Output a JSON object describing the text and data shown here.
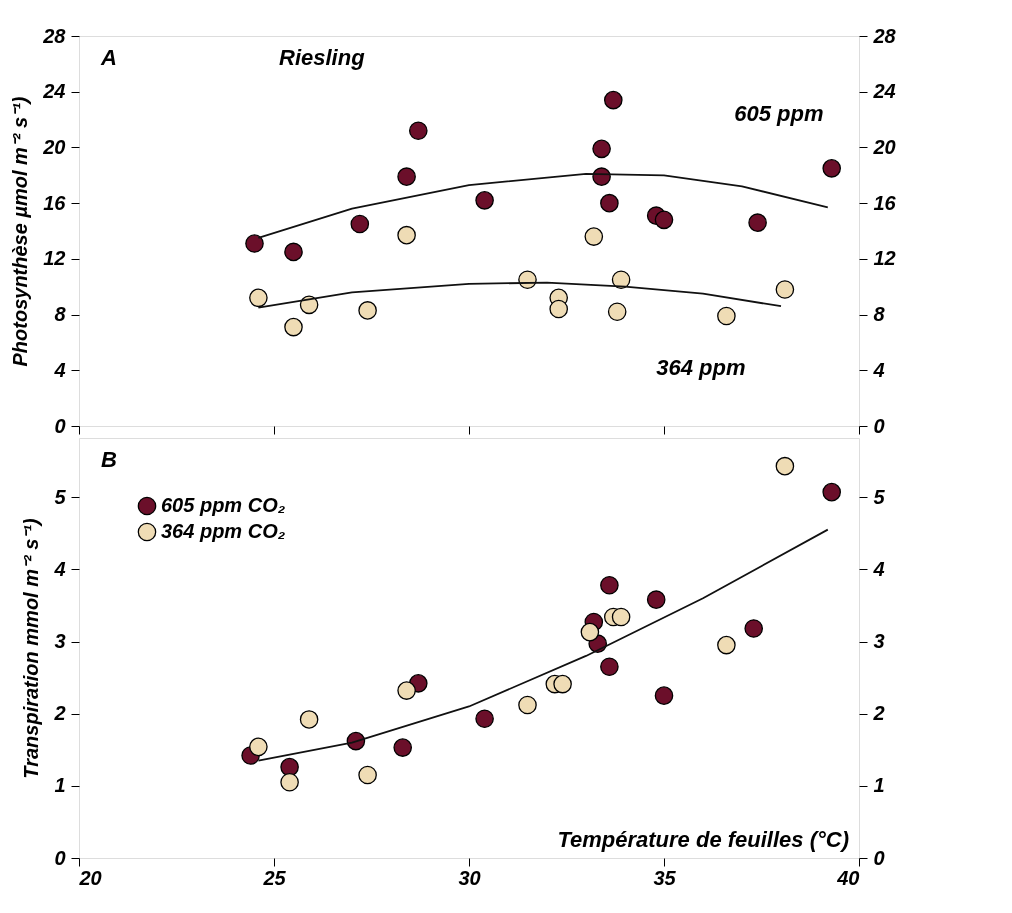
{
  "chart_data": [
    {
      "type": "scatter",
      "ylabel": "Photosynthèse µmol m⁻² s⁻¹)",
      "annotations": [
        "A",
        "Riesling",
        "605 ppm",
        "364 ppm"
      ],
      "marker": "circle",
      "xlim": [
        20,
        40
      ],
      "xticks": [
        20,
        25,
        30,
        35,
        40
      ],
      "ylim": [
        0,
        28
      ],
      "yticks": [
        0,
        4,
        8,
        12,
        16,
        20,
        24,
        28
      ],
      "y2lim": [
        0,
        28
      ],
      "y2ticks": [
        0,
        4,
        8,
        12,
        16,
        20,
        24,
        28
      ],
      "tick_labels": "y",
      "series": [
        {
          "color": "#6b0f2a",
          "x": [
            24.5,
            25.5,
            27.2,
            28.4,
            28.7,
            30.4,
            33.4,
            33.7,
            33.4,
            33.6,
            34.8,
            35.0,
            37.4,
            39.3
          ],
          "values": [
            13.1,
            12.5,
            14.5,
            17.9,
            21.2,
            16.2,
            19.9,
            23.4,
            17.9,
            16.0,
            15.1,
            14.8,
            14.6,
            18.5
          ]
        },
        {
          "color": "#efdcb5",
          "x": [
            24.6,
            25.5,
            25.9,
            27.4,
            28.4,
            31.5,
            32.3,
            32.3,
            33.2,
            33.9,
            33.8,
            36.6,
            38.1
          ],
          "values": [
            9.2,
            7.1,
            8.7,
            8.3,
            13.7,
            10.5,
            9.2,
            8.4,
            13.6,
            10.5,
            8.2,
            7.9,
            9.8
          ]
        },
        {
          "type": "line",
          "marker": "none",
          "color": "#111111",
          "line_style": "solid",
          "x": [
            24.6,
            27,
            30,
            33,
            35,
            37,
            39.2
          ],
          "values": [
            13.5,
            15.6,
            17.3,
            18.1,
            18.0,
            17.2,
            15.7
          ]
        },
        {
          "type": "line",
          "marker": "none",
          "color": "#111111",
          "line_style": "solid",
          "x": [
            24.6,
            27,
            30,
            32,
            34,
            36,
            38
          ],
          "values": [
            8.5,
            9.6,
            10.2,
            10.3,
            10.0,
            9.5,
            8.6
          ]
        }
      ]
    },
    {
      "type": "scatter",
      "xlabel": "Température de feuilles (°C)",
      "ylabel": "Transpiration mmol m⁻² s⁻¹)",
      "annotations": [
        "B"
      ],
      "marker": "circle",
      "legend": "top left",
      "xlim": [
        20,
        40
      ],
      "xticks": [
        20,
        25,
        30,
        35,
        40
      ],
      "ylim": [
        0,
        5.82
      ],
      "yticks": [
        0,
        1,
        2,
        3,
        4,
        5
      ],
      "y2lim": [
        0,
        5.82
      ],
      "y2ticks": [
        0,
        1,
        2,
        3,
        4,
        5
      ],
      "series": [
        {
          "name": "605 ppm CO₂",
          "color": "#6b0f2a",
          "x": [
            24.4,
            25.4,
            27.1,
            28.3,
            28.7,
            30.4,
            33.2,
            33.3,
            33.6,
            33.6,
            34.8,
            35.0,
            37.3,
            39.3
          ],
          "values": [
            1.42,
            1.26,
            1.62,
            1.53,
            2.42,
            1.93,
            3.27,
            2.97,
            3.78,
            2.65,
            3.58,
            2.25,
            3.18,
            5.07
          ]
        },
        {
          "name": "364 ppm CO₂",
          "color": "#efdcb5",
          "x": [
            24.6,
            25.4,
            25.9,
            27.4,
            28.4,
            31.5,
            32.2,
            32.4,
            33.1,
            33.7,
            33.9,
            36.6,
            38.1
          ],
          "values": [
            1.54,
            1.05,
            1.92,
            1.15,
            2.32,
            2.12,
            2.41,
            2.41,
            3.13,
            3.34,
            3.34,
            2.95,
            5.43
          ]
        },
        {
          "type": "line",
          "marker": "none",
          "color": "#111111",
          "line_style": "solid",
          "x": [
            24.6,
            27,
            30,
            33,
            36,
            39.2
          ],
          "values": [
            1.35,
            1.6,
            2.1,
            2.8,
            3.6,
            4.55
          ]
        }
      ]
    }
  ]
}
